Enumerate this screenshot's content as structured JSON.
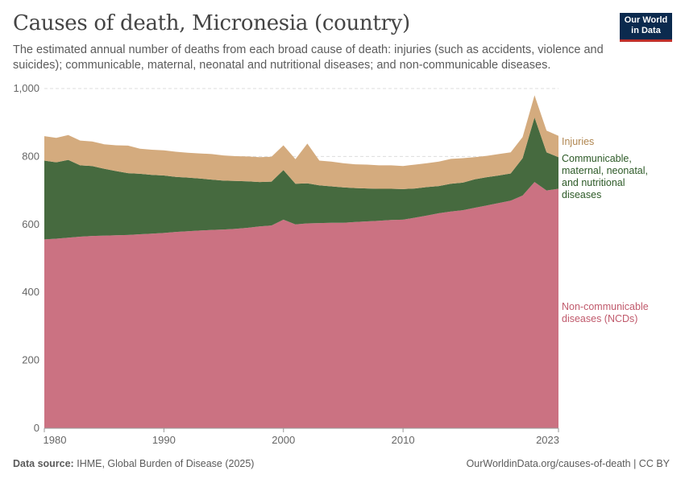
{
  "header": {
    "title": "Causes of death, Micronesia (country)",
    "subtitle": "The estimated annual number of deaths from each broad cause of death: injuries (such as accidents, violence and suicides); communicable, maternal, neonatal and nutritional diseases; and non-communicable diseases."
  },
  "logo": {
    "line1": "Our World",
    "line2": "in Data"
  },
  "footer": {
    "source_label": "Data source:",
    "source_text": "IHME, Global Burden of Disease (2025)",
    "url": "OurWorldinData.org/causes-of-death | CC BY"
  },
  "chart_data": {
    "type": "area",
    "stacked": true,
    "x": [
      1980,
      1981,
      1982,
      1983,
      1984,
      1985,
      1986,
      1987,
      1988,
      1989,
      1990,
      1991,
      1992,
      1993,
      1994,
      1995,
      1996,
      1997,
      1998,
      1999,
      2000,
      2001,
      2002,
      2003,
      2004,
      2005,
      2006,
      2007,
      2008,
      2009,
      2010,
      2011,
      2012,
      2013,
      2014,
      2015,
      2016,
      2017,
      2018,
      2019,
      2020,
      2021,
      2022,
      2023
    ],
    "xlim": [
      1980,
      2023
    ],
    "ylim": [
      0,
      1000
    ],
    "x_ticks": [
      "1980",
      "1990",
      "2000",
      "2010",
      "2023"
    ],
    "y_ticks": [
      "0",
      "200",
      "400",
      "600",
      "800",
      "1,000"
    ],
    "series": [
      {
        "name": "Non-communicable diseases (NCDs)",
        "label_lines": [
          "Non-communicable",
          "diseases (NCDs)"
        ],
        "color": "#cb7282",
        "text_color": "#c05a6c",
        "values": [
          556,
          558,
          561,
          564,
          566,
          567,
          568,
          569,
          571,
          573,
          575,
          578,
          580,
          582,
          584,
          585,
          587,
          590,
          594,
          597,
          614,
          600,
          603,
          604,
          605,
          605,
          607,
          609,
          611,
          613,
          614,
          620,
          626,
          633,
          638,
          642,
          649,
          656,
          663,
          670,
          685,
          725,
          700,
          705
        ]
      },
      {
        "name": "Communicable, maternal, neonatal, and nutritional diseases",
        "label_lines": [
          "Communicable,",
          "maternal, neonatal,",
          "and nutritional",
          "diseases"
        ],
        "color": "#466a3f",
        "text_color": "#2d5a27",
        "values": [
          232,
          225,
          229,
          210,
          206,
          197,
          189,
          182,
          178,
          173,
          169,
          162,
          158,
          153,
          148,
          144,
          141,
          137,
          131,
          129,
          146,
          120,
          118,
          111,
          107,
          104,
          100,
          97,
          94,
          92,
          90,
          86,
          84,
          80,
          82,
          81,
          84,
          83,
          81,
          80,
          110,
          190,
          112,
          93
        ]
      },
      {
        "name": "Injuries",
        "label_lines": [
          "Injuries"
        ],
        "color": "#d4ab7e",
        "text_color": "#b08650",
        "values": [
          72,
          72,
          73,
          73,
          72,
          72,
          76,
          81,
          74,
          74,
          74,
          74,
          73,
          74,
          75,
          74,
          73,
          73,
          73,
          73,
          73,
          72,
          117,
          73,
          73,
          71,
          70,
          70,
          69,
          69,
          68,
          70,
          70,
          72,
          73,
          72,
          65,
          63,
          63,
          62,
          62,
          65,
          64,
          63
        ]
      }
    ]
  }
}
